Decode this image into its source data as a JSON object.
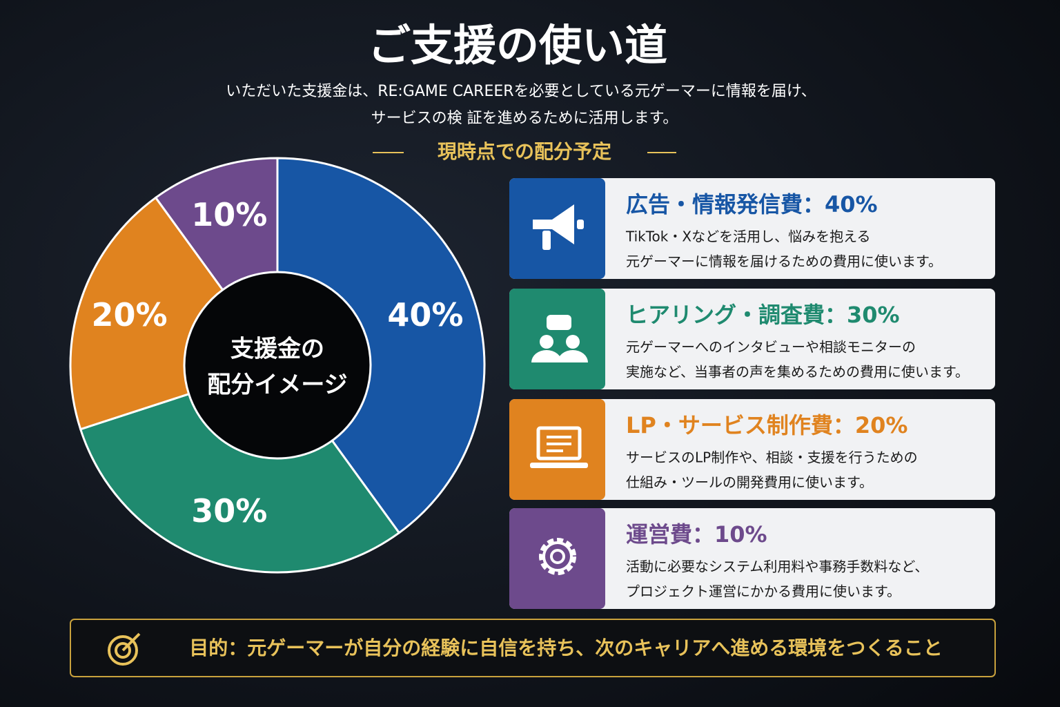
{
  "header": {
    "title": "ご支援の使い道",
    "subtitle": [
      "いただいた支援金は、RE:GAME CAREERを必要としている元ゲーマーに情報を届け、",
      "サービスの検 証を進めるために活用します。"
    ],
    "section": "現時点での配分予定"
  },
  "chart_data": {
    "type": "pie",
    "donut": true,
    "center_label": [
      "支援金の",
      "配分イメージ"
    ],
    "values": [
      40,
      30,
      20,
      10
    ],
    "value_labels": [
      "40%",
      "30%",
      "20%",
      "10%"
    ],
    "colors": [
      "#1756a5",
      "#1f8a6f",
      "#e0831f",
      "#6d4a8c"
    ]
  },
  "cards": [
    {
      "title": "広告・情報発信費：40%",
      "color": "#1756a5",
      "lines": [
        "TikTok・Xなどを活用し、悩みを抱える",
        "元ゲーマーに情報を届けるための費用に使います。"
      ]
    },
    {
      "title": "ヒアリング・調査費：30%",
      "color": "#1f8a6f",
      "lines": [
        "元ゲーマーへのインタビューや相談モニターの",
        "実施など、当事者の声を集めるための費用に使います。"
      ]
    },
    {
      "title": "LP・サービス制作費：20%",
      "color": "#e0831f",
      "lines": [
        "サービスのLP制作や、相談・支援を行うための",
        "仕組み・ツールの開発費用に使います。"
      ]
    },
    {
      "title": "運営費：10%",
      "color": "#6d4a8c",
      "lines": [
        "活動に必要なシステム利用料や事務手数料など、",
        "プロジェクト運営にかかる費用に使います。"
      ]
    }
  ],
  "footer": "目的：元ゲーマーが自分の経験に自信を持ち、次のキャリアへ進める環境をつくること"
}
